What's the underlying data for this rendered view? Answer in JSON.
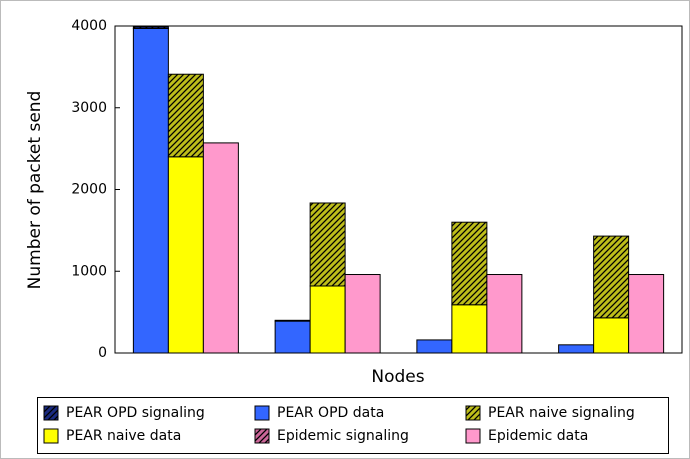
{
  "chart_data": {
    "type": "stacked-grouped-bar",
    "x_label": "Nodes",
    "y_label": "Number of packet send",
    "categories": [
      null,
      null,
      null,
      null
    ],
    "ylim": [
      0,
      4000
    ],
    "yticks": [
      0,
      1000,
      2000,
      3000,
      4000
    ],
    "series": [
      {
        "name": "PEAR OPD signaling",
        "color": "#1a2a80",
        "hatch": true,
        "stack": 0,
        "values": [
          20,
          10,
          0,
          0
        ]
      },
      {
        "name": "PEAR OPD data",
        "color": "#3366ff",
        "hatch": false,
        "stack": 0,
        "values": [
          3970,
          390,
          160,
          100
        ]
      },
      {
        "name": "PEAR naive signaling",
        "color": "#bdbd1a",
        "hatch": true,
        "stack": 1,
        "values": [
          1010,
          1015,
          1010,
          1000
        ]
      },
      {
        "name": "PEAR naive data",
        "color": "#ffff00",
        "hatch": false,
        "stack": 1,
        "values": [
          2400,
          820,
          590,
          430
        ]
      },
      {
        "name": "Epidemic signaling",
        "color": "#cc6699",
        "hatch": true,
        "stack": 2,
        "values": [
          0,
          0,
          0,
          0
        ]
      },
      {
        "name": "Epidemic data",
        "color": "#ff99cc",
        "hatch": false,
        "stack": 2,
        "values": [
          2570,
          960,
          960,
          960
        ]
      }
    ]
  }
}
